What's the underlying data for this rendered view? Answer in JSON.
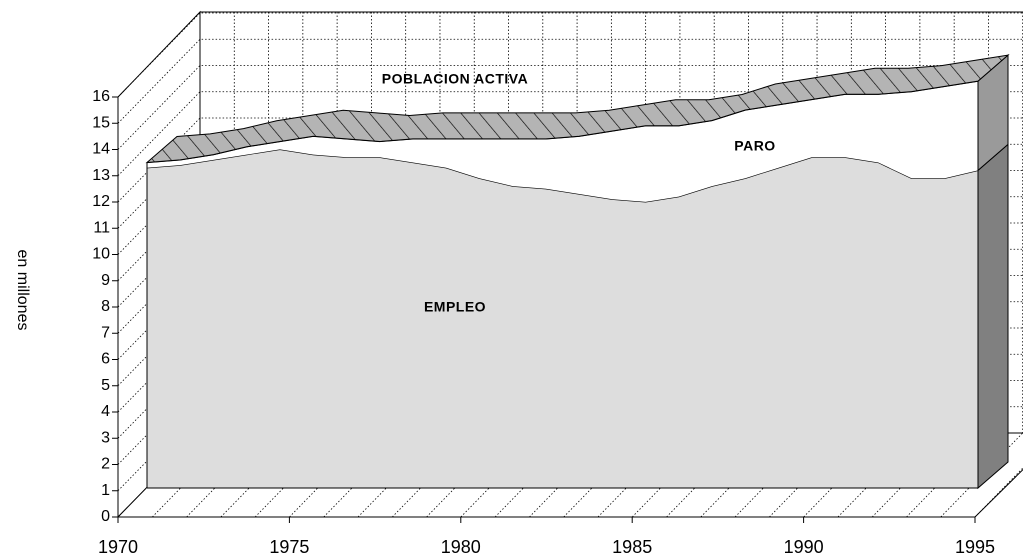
{
  "chart_data": {
    "type": "area3d",
    "stacked": true,
    "y_label": "en millones",
    "annotation": "POBLACION ACTIVA",
    "x": [
      1970,
      1971,
      1972,
      1973,
      1974,
      1975,
      1976,
      1977,
      1978,
      1979,
      1980,
      1981,
      1982,
      1983,
      1984,
      1985,
      1986,
      1987,
      1988,
      1989,
      1990,
      1991,
      1992,
      1993,
      1994,
      1995
    ],
    "series": [
      {
        "name": "EMPLEO",
        "color": "#dddddd",
        "values": [
          12.2,
          12.3,
          12.5,
          12.7,
          12.9,
          12.7,
          12.6,
          12.6,
          12.4,
          12.2,
          11.8,
          11.5,
          11.4,
          11.2,
          11.0,
          10.9,
          11.1,
          11.5,
          11.8,
          12.2,
          12.6,
          12.6,
          12.4,
          11.8,
          11.8,
          12.1
        ]
      },
      {
        "name": "PARO",
        "color": "#ffffff",
        "values": [
          0.2,
          0.2,
          0.2,
          0.3,
          0.3,
          0.7,
          0.7,
          0.6,
          0.9,
          1.1,
          1.5,
          1.8,
          1.9,
          2.2,
          2.6,
          2.9,
          2.7,
          2.5,
          2.6,
          2.4,
          2.2,
          2.4,
          2.6,
          3.3,
          3.5,
          3.4
        ]
      }
    ],
    "xlim": [
      1970,
      1995
    ],
    "xticks": [
      1970,
      1975,
      1980,
      1985,
      1990,
      1995
    ],
    "ylim": [
      0,
      16
    ],
    "yticks": [
      0,
      1,
      2,
      3,
      4,
      5,
      6,
      7,
      8,
      9,
      10,
      11,
      12,
      13,
      14,
      15,
      16
    ],
    "grid": true
  }
}
